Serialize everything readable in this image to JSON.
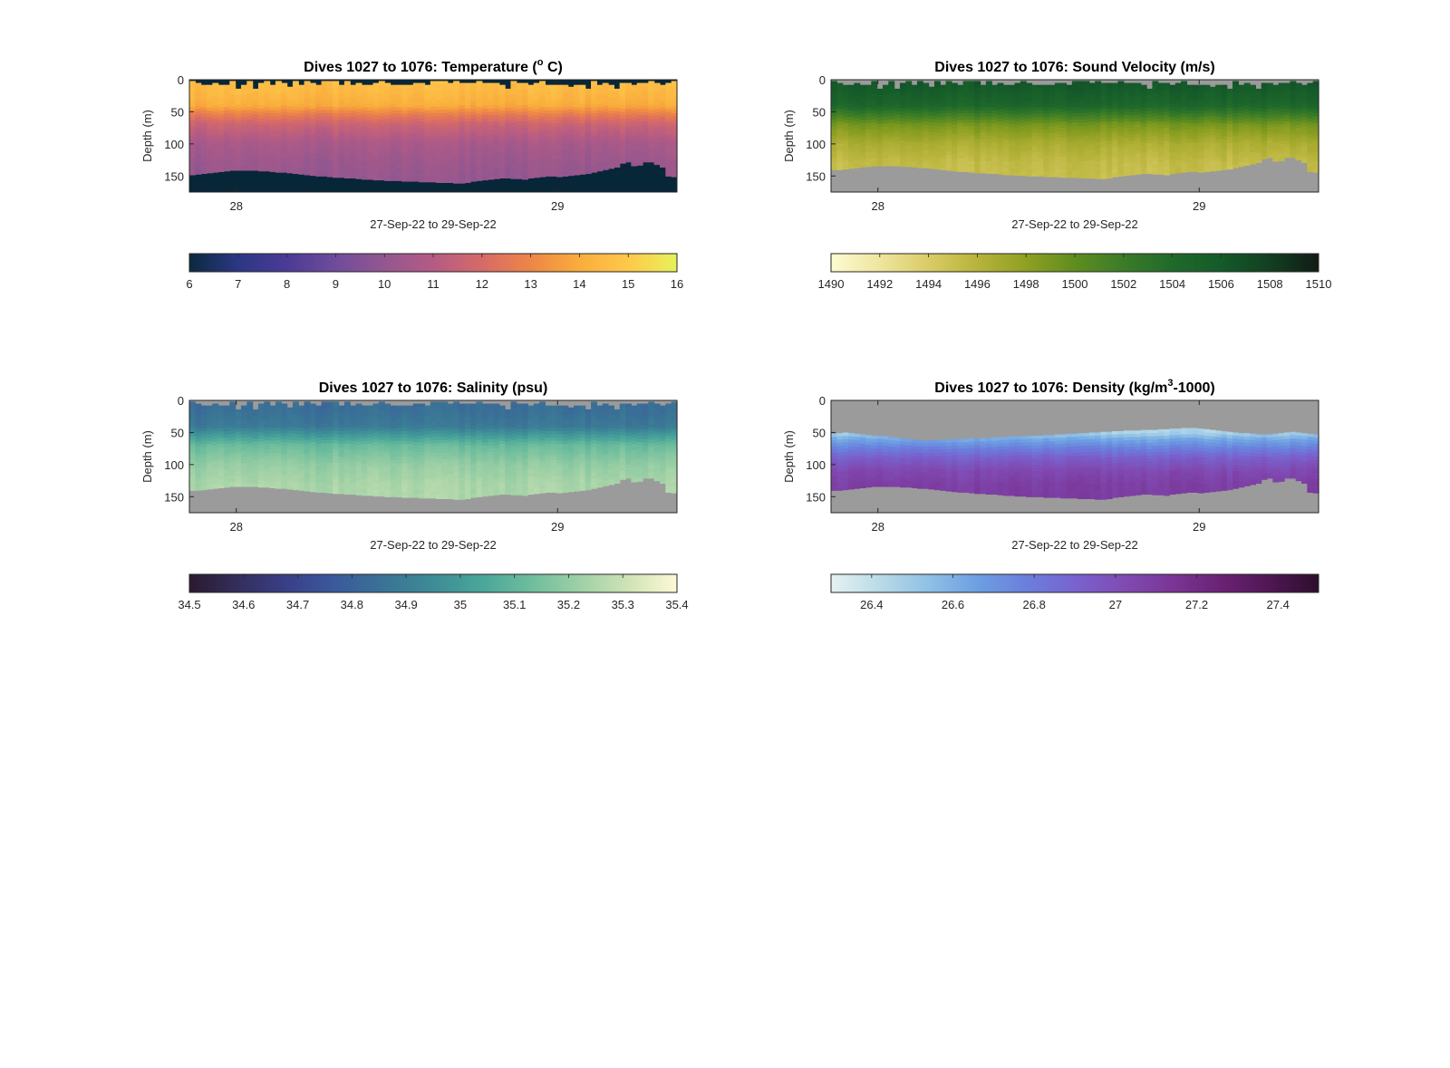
{
  "chart_data": [
    {
      "type": "heatmap",
      "title": "Dives 1027 to 1076: Temperature (",
      "title_sup": "o",
      "title_end": " C)",
      "xlabel": "27-Sep-22 to 29-Sep-22",
      "ylabel": "Depth (m)",
      "xlim": [
        "2022-09-27T20:30",
        "2022-09-29T08:55"
      ],
      "ylim": [
        0,
        175
      ],
      "y_reversed": true,
      "x_ticks": [
        "28",
        "29"
      ],
      "x_tick_values": [
        "2022-09-28T00:00",
        "2022-09-29T00:00"
      ],
      "y_ticks": [
        0,
        50,
        100,
        150
      ],
      "colorbar": {
        "min": 6,
        "max": 16,
        "ticks": [
          "6",
          "7",
          "8",
          "9",
          "10",
          "11",
          "12",
          "13",
          "14",
          "15",
          "16"
        ],
        "colors": [
          "#0b2a3e",
          "#2b3784",
          "#4b3b96",
          "#6f4c9b",
          "#94578f",
          "#b45b85",
          "#d66a68",
          "#ee8646",
          "#f9ad3c",
          "#ffc84b",
          "#e6f25a"
        ]
      },
      "fill_color": "#072638",
      "profile": {
        "depths": [
          0,
          10,
          20,
          40,
          55,
          70,
          100,
          130,
          160
        ],
        "values": [
          14.6,
          14.5,
          14.4,
          14.0,
          12.6,
          11.6,
          10.6,
          10.2,
          10.0
        ]
      },
      "bottom_depth": [
        148,
        147,
        146,
        145,
        144,
        143,
        142,
        141,
        141,
        141,
        141,
        141,
        142,
        142,
        143,
        144,
        144,
        145,
        146,
        147,
        148,
        149,
        150,
        150,
        151,
        152,
        152,
        153,
        153,
        154,
        155,
        155,
        156,
        156,
        157,
        157,
        157,
        158,
        158,
        158,
        159,
        159,
        159,
        160,
        160,
        160,
        161,
        161,
        160,
        158,
        157,
        156,
        155,
        154,
        153,
        153,
        154,
        154,
        155,
        153,
        152,
        151,
        150,
        150,
        151,
        150,
        149,
        148,
        147,
        146,
        144,
        142,
        140,
        138,
        136,
        130,
        128,
        134,
        133,
        128,
        128,
        132,
        136,
        150,
        151
      ]
    },
    {
      "type": "heatmap",
      "title": "Dives 1027 to 1076: Sound Velocity (m/s)",
      "title_sup": "",
      "title_end": "",
      "xlabel": "27-Sep-22 to 29-Sep-22",
      "ylabel": "Depth (m)",
      "xlim": [
        "2022-09-27T20:30",
        "2022-09-29T08:55"
      ],
      "ylim": [
        0,
        175
      ],
      "y_reversed": true,
      "x_ticks": [
        "28",
        "29"
      ],
      "x_tick_values": [
        "2022-09-28T00:00",
        "2022-09-29T00:00"
      ],
      "y_ticks": [
        0,
        50,
        100,
        150
      ],
      "colorbar": {
        "min": 1490,
        "max": 1510,
        "ticks": [
          "1490",
          "1492",
          "1494",
          "1496",
          "1498",
          "1500",
          "1502",
          "1504",
          "1506",
          "1508",
          "1510"
        ],
        "colors": [
          "#fdfbd2",
          "#eee59e",
          "#d9cc66",
          "#b7b33b",
          "#8fa022",
          "#5f8d1f",
          "#3b7b28",
          "#1f6a2b",
          "#155a2a",
          "#123f21",
          "#111c14"
        ]
      },
      "fill_color": "#9b9b9b",
      "profile": {
        "depths": [
          0,
          10,
          20,
          40,
          55,
          70,
          100,
          130,
          160
        ],
        "values": [
          1506.2,
          1506.0,
          1505.5,
          1504.5,
          1501.8,
          1499.0,
          1496.5,
          1495.3,
          1495.0
        ]
      },
      "bottom_depth": [
        140,
        140,
        139,
        138,
        137,
        136,
        135,
        134,
        134,
        134,
        134,
        134,
        135,
        135,
        136,
        137,
        137,
        138,
        139,
        140,
        141,
        142,
        143,
        143,
        144,
        145,
        145,
        146,
        146,
        147,
        148,
        148,
        149,
        149,
        150,
        150,
        150,
        151,
        151,
        151,
        152,
        152,
        152,
        153,
        153,
        153,
        154,
        154,
        153,
        151,
        150,
        149,
        148,
        147,
        146,
        146,
        147,
        147,
        148,
        146,
        145,
        144,
        143,
        143,
        144,
        143,
        142,
        141,
        140,
        139,
        137,
        135,
        133,
        131,
        129,
        123,
        121,
        127,
        126,
        121,
        121,
        125,
        129,
        143,
        144
      ]
    },
    {
      "type": "heatmap",
      "title": "Dives 1027 to 1076: Salinity (psu)",
      "title_sup": "",
      "title_end": "",
      "xlabel": "27-Sep-22 to 29-Sep-22",
      "ylabel": "Depth (m)",
      "xlim": [
        "2022-09-27T20:30",
        "2022-09-29T08:55"
      ],
      "ylim": [
        0,
        175
      ],
      "y_reversed": true,
      "x_ticks": [
        "28",
        "29"
      ],
      "x_tick_values": [
        "2022-09-28T00:00",
        "2022-09-29T00:00"
      ],
      "y_ticks": [
        0,
        50,
        100,
        150
      ],
      "colorbar": {
        "min": 34.5,
        "max": 35.4,
        "ticks": [
          "34.5",
          "34.6",
          "34.7",
          "34.8",
          "34.9",
          "35",
          "35.1",
          "35.2",
          "35.3",
          "35.4"
        ],
        "colors": [
          "#2a1a2f",
          "#332e5c",
          "#393f88",
          "#3a5a9c",
          "#3a7396",
          "#3d8c97",
          "#4aa69a",
          "#6dbd9d",
          "#9ed0a5",
          "#cfe3b6",
          "#fdf9d6"
        ]
      },
      "fill_color": "#9b9b9b",
      "profile": {
        "depths": [
          0,
          10,
          20,
          40,
          55,
          70,
          100,
          130,
          160
        ],
        "values": [
          34.84,
          34.84,
          34.85,
          34.88,
          35.0,
          35.12,
          35.2,
          35.24,
          35.25
        ]
      },
      "bottom_depth": [
        140,
        140,
        139,
        138,
        137,
        136,
        135,
        134,
        134,
        134,
        134,
        134,
        135,
        135,
        136,
        137,
        137,
        138,
        139,
        140,
        141,
        142,
        143,
        143,
        144,
        145,
        145,
        146,
        146,
        147,
        148,
        148,
        149,
        149,
        150,
        150,
        150,
        151,
        151,
        151,
        152,
        152,
        152,
        153,
        153,
        153,
        154,
        154,
        153,
        151,
        150,
        149,
        148,
        147,
        146,
        146,
        147,
        147,
        148,
        146,
        145,
        144,
        143,
        143,
        144,
        143,
        142,
        141,
        140,
        139,
        137,
        135,
        133,
        131,
        129,
        123,
        121,
        127,
        126,
        121,
        121,
        125,
        129,
        143,
        144
      ]
    },
    {
      "type": "heatmap",
      "title": "Dives 1027 to 1076: Density (kg/m",
      "title_sup": "3",
      "title_end": "-1000)",
      "xlabel": "27-Sep-22 to 29-Sep-22",
      "ylabel": "Depth (m)",
      "xlim": [
        "2022-09-27T20:30",
        "2022-09-29T08:55"
      ],
      "ylim": [
        0,
        175
      ],
      "y_reversed": true,
      "x_ticks": [
        "28",
        "29"
      ],
      "x_tick_values": [
        "2022-09-28T00:00",
        "2022-09-29T00:00"
      ],
      "y_ticks": [
        0,
        50,
        100,
        150
      ],
      "colorbar": {
        "min": 26.3,
        "max": 27.5,
        "ticks": [
          "26.4",
          "26.6",
          "26.8",
          "27",
          "27.2",
          "27.4"
        ],
        "colors": [
          "#e6f1f1",
          "#b9dbe6",
          "#8fc0e6",
          "#6d9fe3",
          "#6b7fdc",
          "#7863cf",
          "#804bb3",
          "#7a3596",
          "#6a2274",
          "#4f1653",
          "#2e0e2e"
        ]
      },
      "fill_color": "#9b9b9b",
      "profile": {
        "depths": [
          50,
          60,
          75,
          90,
          110,
          130,
          160
        ],
        "values": [
          26.45,
          26.62,
          26.78,
          26.92,
          27.03,
          27.08,
          27.1
        ]
      },
      "top_depth": [
        52,
        51,
        50,
        51,
        52,
        53,
        54,
        55,
        55,
        56,
        57,
        58,
        59,
        60,
        61,
        62,
        62,
        62,
        62,
        61,
        61,
        60,
        60,
        60,
        59,
        59,
        59,
        58,
        58,
        57,
        57,
        56,
        56,
        56,
        55,
        55,
        55,
        54,
        54,
        53,
        53,
        52,
        52,
        51,
        51,
        50,
        50,
        49,
        49,
        48,
        48,
        47,
        47,
        47,
        46,
        46,
        46,
        45,
        45,
        44,
        44,
        43,
        43,
        43,
        44,
        45,
        46,
        47,
        48,
        49,
        50,
        51,
        51,
        52,
        53,
        53,
        53,
        52,
        51,
        50,
        49,
        50,
        51,
        52,
        53
      ],
      "bottom_depth": [
        140,
        140,
        139,
        138,
        137,
        136,
        135,
        134,
        134,
        134,
        134,
        134,
        135,
        135,
        136,
        137,
        137,
        138,
        139,
        140,
        141,
        142,
        143,
        143,
        144,
        145,
        145,
        146,
        146,
        147,
        148,
        148,
        149,
        149,
        150,
        150,
        150,
        151,
        151,
        151,
        152,
        152,
        152,
        153,
        153,
        153,
        154,
        154,
        153,
        151,
        150,
        149,
        148,
        147,
        146,
        146,
        147,
        147,
        148,
        146,
        145,
        144,
        143,
        143,
        144,
        143,
        142,
        141,
        140,
        139,
        137,
        135,
        133,
        131,
        129,
        123,
        121,
        127,
        126,
        121,
        121,
        125,
        129,
        143,
        144
      ]
    }
  ]
}
